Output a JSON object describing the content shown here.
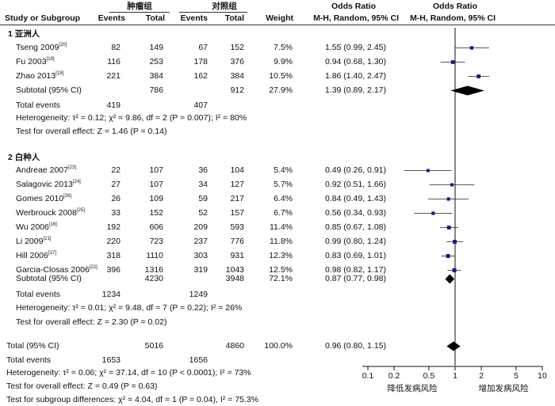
{
  "header": {
    "group1": "肿瘤组",
    "group2": "对照组",
    "study": "Study or Subgroup",
    "events": "Events",
    "total": "Total",
    "weight": "Weight",
    "or_title_text": "Odds Ratio",
    "or_sub_text": "M-H, Random, 95% CI",
    "or_title_plot": "Odds Ratio",
    "or_sub_plot": "M-H, Random, 95% CI"
  },
  "subgroups": [
    {
      "title": "1 亚洲人",
      "studies": [
        {
          "name": "Tseng 2009",
          "ref": "[20]",
          "e1": "82",
          "t1": "149",
          "e2": "67",
          "t2": "152",
          "weight": "7.5%",
          "or_text": "1.55 (0.99, 2.45)"
        },
        {
          "name": "Fu 2003",
          "ref": "[19]",
          "e1": "116",
          "t1": "253",
          "e2": "178",
          "t2": "376",
          "weight": "9.9%",
          "or_text": "0.94 (0.68, 1.30)"
        },
        {
          "name": "Zhao 2013",
          "ref": "[18]",
          "e1": "221",
          "t1": "384",
          "e2": "162",
          "t2": "384",
          "weight": "10.5%",
          "or_text": "1.86 (1.40, 2.47)"
        }
      ],
      "subtotal": {
        "label": "Subtotal (95% CI)",
        "t1": "786",
        "t2": "912",
        "weight": "27.9%",
        "or_text": "1.39 (0.89, 2.17)"
      },
      "total_events": {
        "label": "Total events",
        "e1": "419",
        "e2": "407"
      },
      "heterogeneity": "Heterogeneity: τ² = 0.12; χ² = 9.86, df = 2 (P = 0.007); I² = 80%",
      "overall": "Test for overall effect: Z = 1.46 (P = 0.14)"
    },
    {
      "title": "2 白种人",
      "studies": [
        {
          "name": "Andreae 2007",
          "ref": "[23]",
          "e1": "22",
          "t1": "107",
          "e2": "36",
          "t2": "104",
          "weight": "5.4%",
          "or_text": "0.49 (0.26, 0.91)"
        },
        {
          "name": "Salagovic 2013",
          "ref": "[24]",
          "e1": "27",
          "t1": "107",
          "e2": "34",
          "t2": "127",
          "weight": "5.7%",
          "or_text": "0.92 (0.51, 1.66)"
        },
        {
          "name": "Gomes 2010",
          "ref": "[26]",
          "e1": "26",
          "t1": "109",
          "e2": "59",
          "t2": "217",
          "weight": "6.4%",
          "or_text": "0.84 (0.49, 1.43)"
        },
        {
          "name": "Werbrouck 2008",
          "ref": "[25]",
          "e1": "33",
          "t1": "152",
          "e2": "52",
          "t2": "157",
          "weight": "6.7%",
          "or_text": "0.56 (0.34, 0.93)"
        },
        {
          "name": "Wu 2006",
          "ref": "[16]",
          "e1": "192",
          "t1": "606",
          "e2": "209",
          "t2": "593",
          "weight": "11.4%",
          "or_text": "0.85 (0.67, 1.08)"
        },
        {
          "name": "Li 2009",
          "ref": "[21]",
          "e1": "220",
          "t1": "723",
          "e2": "237",
          "t2": "776",
          "weight": "11.8%",
          "or_text": "0.99 (0.80, 1.24)"
        },
        {
          "name": "Hill 2006",
          "ref": "[17]",
          "e1": "318",
          "t1": "1110",
          "e2": "303",
          "t2": "931",
          "weight": "12.3%",
          "or_text": "0.83 (0.69, 1.01)"
        },
        {
          "name": "Garcia-Closas 2006",
          "ref": "[22]",
          "e1": "396",
          "t1": "1316",
          "e2": "319",
          "t2": "1043",
          "weight": "12.5%",
          "or_text": "0.98 (0.82, 1.17)"
        }
      ],
      "subtotal": {
        "label": "Subtotal (95% CI)",
        "t1": "4230",
        "t2": "3948",
        "weight": "72.1%",
        "or_text": "0.87 (0.77, 0.98)"
      },
      "total_events": {
        "label": "Total events",
        "e1": "1234",
        "e2": "1249"
      },
      "heterogeneity": "Heterogeneity: τ² = 0.01; χ² = 9.48, df = 7 (P = 0.22); I² = 26%",
      "overall": "Test for overall effect: Z = 2.30 (P = 0.02)"
    }
  ],
  "total": {
    "label": "Total (95% CI)",
    "t1": "5016",
    "t2": "4860",
    "weight": "100.0%",
    "or_text": "0.96 (0.80, 1.15)"
  },
  "total_events": {
    "label": "Total events",
    "e1": "1653",
    "e2": "1656"
  },
  "footer": {
    "heterogeneity": "Heterogeneity: τ² = 0.06; χ² = 37.14, df = 10 (P < 0.0001); I² = 73%",
    "overall": "Test for overall effect: Z = 0.49 (P = 0.63)",
    "subgroup_diff": "Test for subgroup differences: χ² = 4.04, df = 1 (P = 0.04), I² = 75.3%"
  },
  "chart_data": {
    "type": "forest",
    "xscale": "log",
    "xlim": [
      0.1,
      10
    ],
    "xticks": [
      "0.1",
      "0.2",
      "0.5",
      "1",
      "2",
      "5",
      "10"
    ],
    "xtick_values": [
      0.1,
      0.2,
      0.5,
      1,
      2,
      5,
      10
    ],
    "null_line": 1,
    "xlabel_left": "降低发病风险",
    "xlabel_right": "增加发病风险",
    "studies": [
      {
        "or": 1.55,
        "lo": 0.99,
        "hi": 2.45,
        "weight": 7.5
      },
      {
        "or": 0.94,
        "lo": 0.68,
        "hi": 1.3,
        "weight": 9.9
      },
      {
        "or": 1.86,
        "lo": 1.4,
        "hi": 2.47,
        "weight": 10.5
      },
      {
        "or": 0.49,
        "lo": 0.26,
        "hi": 0.91,
        "weight": 5.4
      },
      {
        "or": 0.92,
        "lo": 0.51,
        "hi": 1.66,
        "weight": 5.7
      },
      {
        "or": 0.84,
        "lo": 0.49,
        "hi": 1.43,
        "weight": 6.4
      },
      {
        "or": 0.56,
        "lo": 0.34,
        "hi": 0.93,
        "weight": 6.7
      },
      {
        "or": 0.85,
        "lo": 0.67,
        "hi": 1.08,
        "weight": 11.4
      },
      {
        "or": 0.99,
        "lo": 0.8,
        "hi": 1.24,
        "weight": 11.8
      },
      {
        "or": 0.83,
        "lo": 0.69,
        "hi": 1.01,
        "weight": 12.3
      },
      {
        "or": 0.98,
        "lo": 0.82,
        "hi": 1.17,
        "weight": 12.5
      }
    ],
    "diamonds": [
      {
        "or": 1.39,
        "lo": 0.89,
        "hi": 2.17
      },
      {
        "or": 0.87,
        "lo": 0.77,
        "hi": 0.98
      },
      {
        "or": 0.96,
        "lo": 0.8,
        "hi": 1.15
      }
    ],
    "marker_color": "#1a1a8c"
  }
}
